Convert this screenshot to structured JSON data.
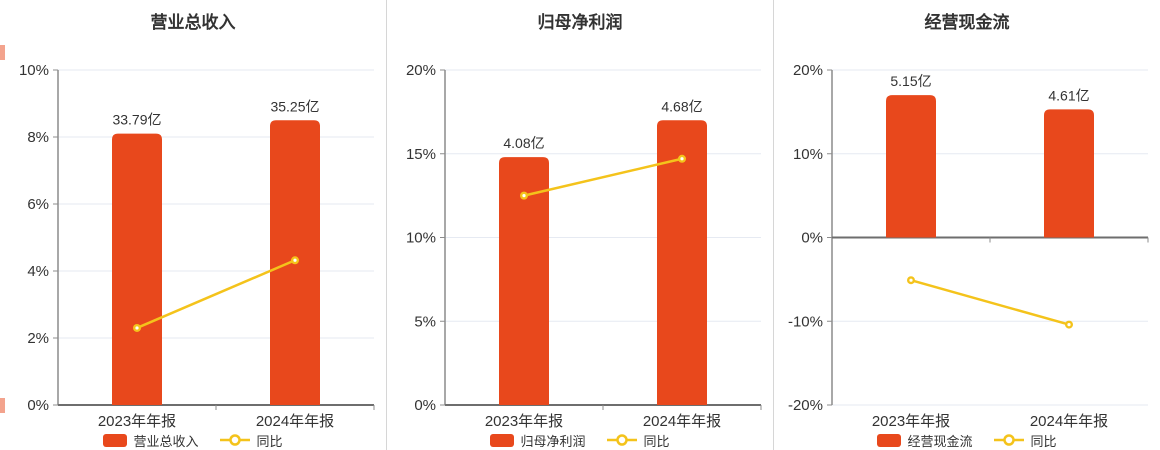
{
  "colors": {
    "bar": "#E8481C",
    "line": "#F4C31B",
    "grid": "#E6EAF2",
    "axis": "#8C8C8C",
    "zero_axis": "#6E6E6E",
    "text": "#333333",
    "marker_core": "#FFFFFF",
    "divider": "#D6D6D6"
  },
  "chart_data": [
    {
      "type": "bar",
      "title": "营业总收入",
      "categories": [
        "2023年年报",
        "2024年年报"
      ],
      "series": [
        {
          "name": "营业总收入",
          "type": "bar",
          "unit": "亿",
          "values": [
            33.79,
            35.25
          ],
          "labels": [
            "33.79亿",
            "35.25亿"
          ],
          "display_pct": [
            8.1,
            8.5
          ]
        },
        {
          "name": "同比",
          "type": "line",
          "unit": "%",
          "values": [
            2.3,
            4.32
          ]
        }
      ],
      "y_axis": {
        "min": 0,
        "max": 10,
        "step": 2,
        "tick_suffix": "%"
      },
      "legend_position": "bottom",
      "grid": true
    },
    {
      "type": "bar",
      "title": "归母净利润",
      "categories": [
        "2023年年报",
        "2024年年报"
      ],
      "series": [
        {
          "name": "归母净利润",
          "type": "bar",
          "unit": "亿",
          "values": [
            4.08,
            4.68
          ],
          "labels": [
            "4.08亿",
            "4.68亿"
          ],
          "display_pct": [
            14.8,
            17.0
          ]
        },
        {
          "name": "同比",
          "type": "line",
          "unit": "%",
          "values": [
            12.5,
            14.7
          ]
        }
      ],
      "y_axis": {
        "min": 0,
        "max": 20,
        "step": 5,
        "tick_suffix": "%"
      },
      "legend_position": "bottom",
      "grid": true
    },
    {
      "type": "bar",
      "title": "经营现金流",
      "categories": [
        "2023年年报",
        "2024年年报"
      ],
      "series": [
        {
          "name": "经营现金流",
          "type": "bar",
          "unit": "亿",
          "values": [
            5.15,
            4.61
          ],
          "labels": [
            "5.15亿",
            "4.61亿"
          ],
          "display_pct": [
            17.0,
            15.3
          ]
        },
        {
          "name": "同比",
          "type": "line",
          "unit": "%",
          "values": [
            -5.1,
            -10.4
          ]
        }
      ],
      "y_axis": {
        "min": -20,
        "max": 20,
        "step": 10,
        "tick_suffix": "%"
      },
      "legend_position": "bottom",
      "grid": true
    }
  ]
}
